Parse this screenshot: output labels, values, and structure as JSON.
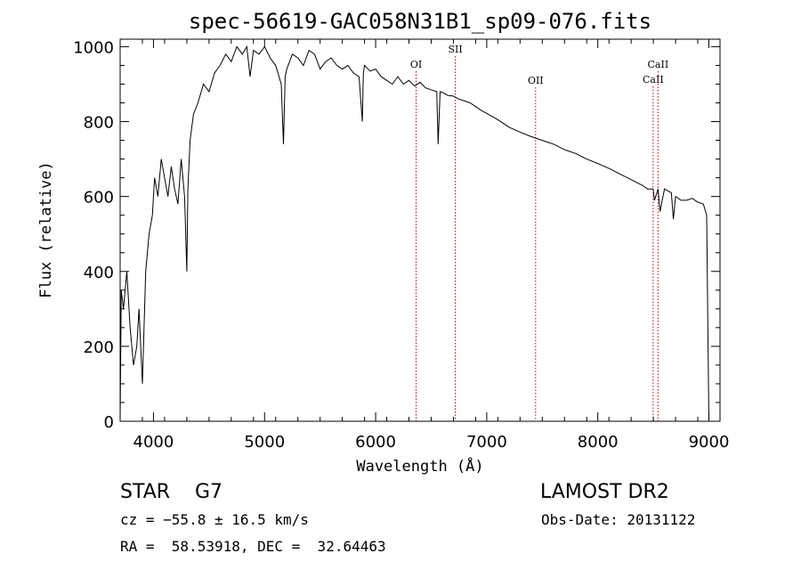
{
  "chart_data": {
    "type": "line",
    "title": "spec-56619-GAC058N31B1_sp09-076.fits",
    "xlabel": "Wavelength (Å)",
    "ylabel": "Flux (relative)",
    "xlim": [
      3700,
      9100
    ],
    "ylim": [
      0,
      1020
    ],
    "x_ticks": [
      4000,
      5000,
      6000,
      7000,
      8000,
      9000
    ],
    "x_tick_labels": [
      "4000",
      "5000",
      "6000",
      "7000",
      "8000",
      "9000"
    ],
    "y_ticks": [
      0,
      200,
      400,
      600,
      800,
      1000
    ],
    "y_tick_labels": [
      "0",
      "200",
      "400",
      "600",
      "800",
      "1000"
    ],
    "grid": false,
    "series": [
      {
        "color": "#000000",
        "x": [
          3700,
          3710,
          3730,
          3760,
          3790,
          3820,
          3850,
          3870,
          3900,
          3930,
          3960,
          3990,
          4010,
          4040,
          4070,
          4100,
          4130,
          4160,
          4190,
          4220,
          4250,
          4280,
          4300,
          4310,
          4330,
          4360,
          4400,
          4450,
          4500,
          4550,
          4600,
          4650,
          4700,
          4750,
          4800,
          4840,
          4870,
          4900,
          4950,
          5000,
          5050,
          5100,
          5150,
          5170,
          5185,
          5200,
          5250,
          5300,
          5350,
          5400,
          5450,
          5500,
          5550,
          5600,
          5650,
          5700,
          5750,
          5800,
          5850,
          5880,
          5890,
          5900,
          5950,
          6000,
          6050,
          6100,
          6150,
          6200,
          6250,
          6300,
          6350,
          6400,
          6450,
          6500,
          6550,
          6563,
          6580,
          6600,
          6650,
          6700,
          6750,
          6800,
          6850,
          6900,
          6950,
          7000,
          7100,
          7200,
          7300,
          7400,
          7500,
          7600,
          7700,
          7800,
          7900,
          8000,
          8100,
          8200,
          8300,
          8400,
          8450,
          8498,
          8510,
          8542,
          8560,
          8600,
          8662,
          8680,
          8700,
          8750,
          8800,
          8850,
          8900,
          8950,
          8980,
          9000
        ],
        "y": [
          0,
          350,
          300,
          400,
          250,
          150,
          200,
          300,
          100,
          400,
          500,
          550,
          650,
          600,
          700,
          650,
          600,
          680,
          620,
          580,
          700,
          600,
          400,
          620,
          750,
          820,
          850,
          900,
          880,
          930,
          950,
          980,
          960,
          1000,
          980,
          1000,
          920,
          990,
          980,
          1000,
          970,
          950,
          900,
          740,
          920,
          940,
          980,
          970,
          950,
          990,
          980,
          940,
          960,
          970,
          950,
          940,
          950,
          930,
          920,
          800,
          930,
          950,
          935,
          940,
          920,
          910,
          900,
          920,
          900,
          910,
          895,
          905,
          890,
          885,
          880,
          740,
          880,
          878,
          870,
          868,
          860,
          855,
          850,
          840,
          830,
          822,
          805,
          785,
          772,
          760,
          750,
          740,
          725,
          715,
          700,
          688,
          675,
          660,
          645,
          630,
          620,
          620,
          590,
          620,
          560,
          620,
          610,
          540,
          600,
          590,
          590,
          595,
          585,
          580,
          550,
          0
        ]
      }
    ],
    "line_markers": [
      {
        "label": "OI",
        "x": 6364
      },
      {
        "label": "SII",
        "x": 6717
      },
      {
        "label": "OII",
        "x": 7440
      },
      {
        "label": "CaII",
        "x": 8498
      },
      {
        "label": "CaII",
        "x": 8542
      }
    ],
    "marker_color": "#c00000"
  },
  "info": {
    "object": "STAR    G7",
    "survey": "LAMOST DR2",
    "cz": "cz = −55.8 ± 16.5 km/s",
    "obs_date": "Obs-Date: 20131122",
    "radec": "RA =  58.53918, DEC =  32.64463"
  }
}
